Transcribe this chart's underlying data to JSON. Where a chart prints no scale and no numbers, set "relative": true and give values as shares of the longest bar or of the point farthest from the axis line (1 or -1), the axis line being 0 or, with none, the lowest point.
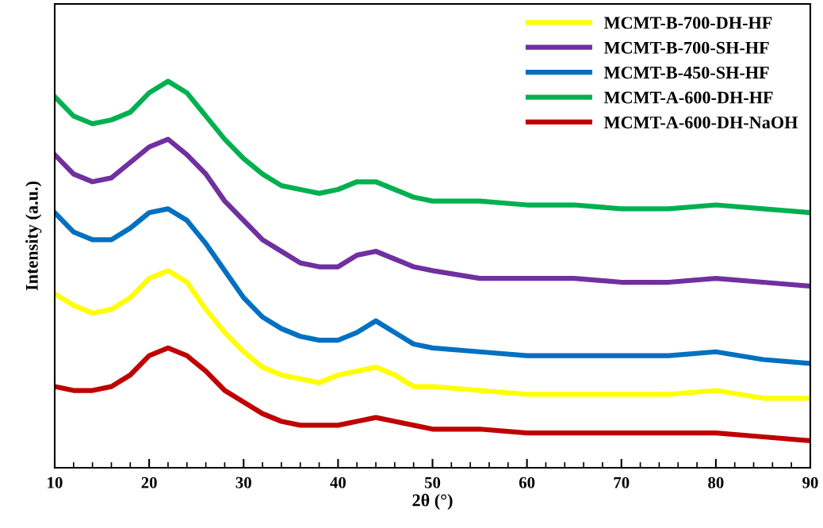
{
  "chart_data": {
    "type": "line",
    "relative": true,
    "xlabel": "2θ (°)",
    "ylabel": "Intensity (a.u.)",
    "xlim": [
      10,
      90
    ],
    "xticks": [
      10,
      20,
      30,
      40,
      50,
      60,
      70,
      80,
      90
    ],
    "legend": "top right",
    "grid": false,
    "marker": "none",
    "line_style": "solid",
    "tick_labels": "x",
    "x": [
      10,
      12,
      14,
      16,
      18,
      20,
      22,
      24,
      26,
      28,
      30,
      32,
      34,
      36,
      38,
      40,
      42,
      44,
      46,
      48,
      50,
      55,
      60,
      65,
      70,
      75,
      80,
      85,
      90
    ],
    "series": [
      {
        "name": "MCMT-B-700-DH-HF",
        "color": "#ffff00",
        "values": [
          0.45,
          0.42,
          0.4,
          0.41,
          0.44,
          0.49,
          0.51,
          0.48,
          0.41,
          0.35,
          0.3,
          0.26,
          0.24,
          0.23,
          0.22,
          0.24,
          0.25,
          0.26,
          0.24,
          0.21,
          0.21,
          0.2,
          0.19,
          0.19,
          0.19,
          0.19,
          0.2,
          0.18,
          0.18
        ]
      },
      {
        "name": "MCMT-B-700-SH-HF",
        "color": "#7030a0",
        "values": [
          0.81,
          0.76,
          0.74,
          0.75,
          0.79,
          0.83,
          0.85,
          0.81,
          0.76,
          0.69,
          0.64,
          0.59,
          0.56,
          0.53,
          0.52,
          0.52,
          0.55,
          0.56,
          0.54,
          0.52,
          0.51,
          0.49,
          0.49,
          0.49,
          0.48,
          0.48,
          0.49,
          0.48,
          0.47
        ]
      },
      {
        "name": "MCMT-B-450-SH-HF",
        "color": "#0070c0",
        "values": [
          0.66,
          0.61,
          0.59,
          0.59,
          0.62,
          0.66,
          0.67,
          0.64,
          0.58,
          0.51,
          0.44,
          0.39,
          0.36,
          0.34,
          0.33,
          0.33,
          0.35,
          0.38,
          0.35,
          0.32,
          0.31,
          0.3,
          0.29,
          0.29,
          0.29,
          0.29,
          0.3,
          0.28,
          0.27
        ]
      },
      {
        "name": "MCMT-A-600-DH-HF",
        "color": "#00b050",
        "values": [
          0.96,
          0.91,
          0.89,
          0.9,
          0.92,
          0.97,
          1,
          0.97,
          0.91,
          0.85,
          0.8,
          0.76,
          0.73,
          0.72,
          0.71,
          0.72,
          0.74,
          0.74,
          0.72,
          0.7,
          0.69,
          0.69,
          0.68,
          0.68,
          0.67,
          0.67,
          0.68,
          0.67,
          0.66
        ]
      },
      {
        "name": "MCMT-A-600-DH-NaOH",
        "color": "#c00000",
        "values": [
          0.21,
          0.2,
          0.2,
          0.21,
          0.24,
          0.29,
          0.31,
          0.29,
          0.25,
          0.2,
          0.17,
          0.14,
          0.12,
          0.11,
          0.11,
          0.11,
          0.12,
          0.13,
          0.12,
          0.11,
          0.1,
          0.1,
          0.09,
          0.09,
          0.09,
          0.09,
          0.09,
          0.08,
          0.07
        ]
      }
    ]
  }
}
